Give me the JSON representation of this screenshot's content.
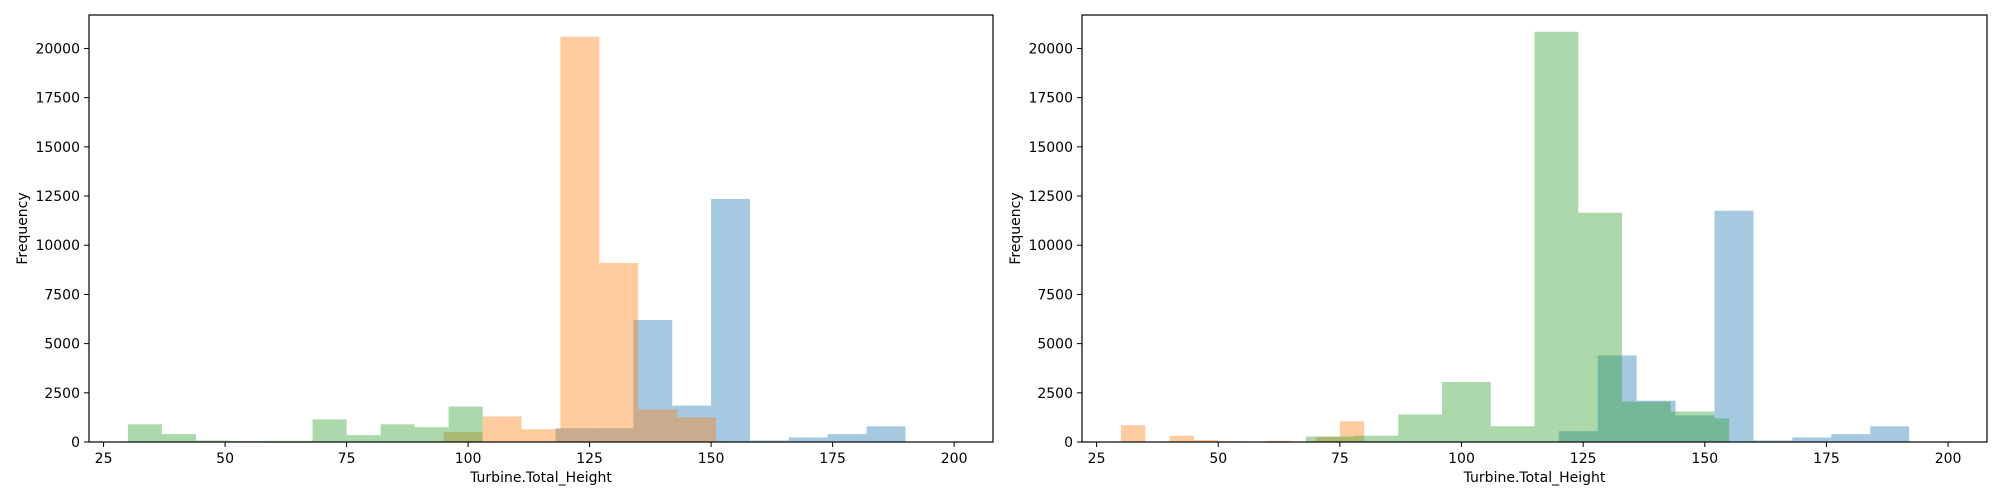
{
  "colors": {
    "series_blue": "#1f77b4",
    "series_orange": "#ff7f0e",
    "series_green": "#2ca02c",
    "bar_alpha": 0.4
  },
  "chart_data": [
    {
      "type": "histogram",
      "xlabel": "Turbine.Total_Height",
      "ylabel": "Frequency",
      "xlim": [
        22,
        208
      ],
      "ylim": [
        0,
        21700
      ],
      "xticks": [
        25,
        50,
        75,
        100,
        125,
        150,
        175,
        200
      ],
      "yticks": [
        0,
        2500,
        5000,
        7500,
        10000,
        12500,
        15000,
        17500,
        20000
      ],
      "grid": false,
      "series": [
        {
          "color": "series_blue",
          "bins": [
            {
              "x0": 118,
              "x1": 126,
              "y": 700
            },
            {
              "x0": 126,
              "x1": 134,
              "y": 700
            },
            {
              "x0": 134,
              "x1": 142,
              "y": 6200
            },
            {
              "x0": 142,
              "x1": 150,
              "y": 1850
            },
            {
              "x0": 150,
              "x1": 158,
              "y": 12350
            },
            {
              "x0": 158,
              "x1": 166,
              "y": 80
            },
            {
              "x0": 166,
              "x1": 174,
              "y": 230
            },
            {
              "x0": 174,
              "x1": 182,
              "y": 400
            },
            {
              "x0": 182,
              "x1": 190,
              "y": 800
            },
            {
              "x0": 190,
              "x1": 200,
              "y": 20
            }
          ]
        },
        {
          "color": "series_orange",
          "bins": [
            {
              "x0": 95,
              "x1": 103,
              "y": 500
            },
            {
              "x0": 103,
              "x1": 111,
              "y": 1300
            },
            {
              "x0": 111,
              "x1": 119,
              "y": 650
            },
            {
              "x0": 119,
              "x1": 127,
              "y": 20600
            },
            {
              "x0": 127,
              "x1": 135,
              "y": 9100
            },
            {
              "x0": 135,
              "x1": 143,
              "y": 1650
            },
            {
              "x0": 143,
              "x1": 151,
              "y": 1250
            },
            {
              "x0": 151,
              "x1": 153,
              "y": 50
            }
          ]
        },
        {
          "color": "series_green",
          "bins": [
            {
              "x0": 30,
              "x1": 37,
              "y": 900
            },
            {
              "x0": 37,
              "x1": 44,
              "y": 400
            },
            {
              "x0": 44,
              "x1": 51,
              "y": 80
            },
            {
              "x0": 51,
              "x1": 58,
              "y": 50
            },
            {
              "x0": 58,
              "x1": 68,
              "y": 60
            },
            {
              "x0": 68,
              "x1": 75,
              "y": 1150
            },
            {
              "x0": 75,
              "x1": 82,
              "y": 350
            },
            {
              "x0": 82,
              "x1": 89,
              "y": 900
            },
            {
              "x0": 89,
              "x1": 96,
              "y": 750
            },
            {
              "x0": 96,
              "x1": 103,
              "y": 1800
            }
          ]
        }
      ]
    },
    {
      "type": "histogram",
      "xlabel": "Turbine.Total_Height",
      "ylabel": "Frequency",
      "xlim": [
        22,
        208
      ],
      "ylim": [
        0,
        21700
      ],
      "xticks": [
        25,
        50,
        75,
        100,
        125,
        150,
        175,
        200
      ],
      "yticks": [
        0,
        2500,
        5000,
        7500,
        10000,
        12500,
        15000,
        17500,
        20000
      ],
      "grid": false,
      "series": [
        {
          "color": "series_blue",
          "bins": [
            {
              "x0": 120,
              "x1": 128,
              "y": 550
            },
            {
              "x0": 128,
              "x1": 136,
              "y": 4400
            },
            {
              "x0": 136,
              "x1": 144,
              "y": 2100
            },
            {
              "x0": 144,
              "x1": 152,
              "y": 1350
            },
            {
              "x0": 152,
              "x1": 160,
              "y": 11750
            },
            {
              "x0": 160,
              "x1": 168,
              "y": 80
            },
            {
              "x0": 168,
              "x1": 176,
              "y": 230
            },
            {
              "x0": 176,
              "x1": 184,
              "y": 400
            },
            {
              "x0": 184,
              "x1": 192,
              "y": 800
            },
            {
              "x0": 192,
              "x1": 200,
              "y": 20
            }
          ]
        },
        {
          "color": "series_orange",
          "bins": [
            {
              "x0": 30,
              "x1": 35,
              "y": 850
            },
            {
              "x0": 40,
              "x1": 45,
              "y": 320
            },
            {
              "x0": 45,
              "x1": 50,
              "y": 100
            },
            {
              "x0": 50,
              "x1": 55,
              "y": 40
            },
            {
              "x0": 60,
              "x1": 65,
              "y": 60
            },
            {
              "x0": 70,
              "x1": 75,
              "y": 250
            },
            {
              "x0": 75,
              "x1": 80,
              "y": 1050
            }
          ]
        },
        {
          "color": "series_green",
          "bins": [
            {
              "x0": 68,
              "x1": 78,
              "y": 280
            },
            {
              "x0": 78,
              "x1": 87,
              "y": 320
            },
            {
              "x0": 87,
              "x1": 96,
              "y": 1400
            },
            {
              "x0": 96,
              "x1": 106,
              "y": 3050
            },
            {
              "x0": 106,
              "x1": 115,
              "y": 800
            },
            {
              "x0": 115,
              "x1": 124,
              "y": 20850
            },
            {
              "x0": 124,
              "x1": 133,
              "y": 11650
            },
            {
              "x0": 133,
              "x1": 143,
              "y": 2050
            },
            {
              "x0": 143,
              "x1": 152,
              "y": 1550
            },
            {
              "x0": 152,
              "x1": 155,
              "y": 1200
            }
          ]
        }
      ]
    }
  ]
}
